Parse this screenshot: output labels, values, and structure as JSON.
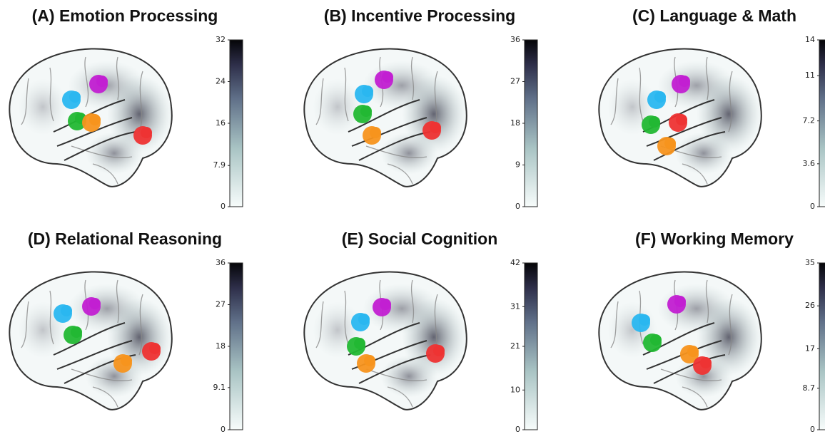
{
  "panels": [
    {
      "title": "(A) Emotion Processing",
      "colorbar": {
        "range": [
          0,
          32
        ],
        "ticks": [
          0,
          7.9,
          16,
          24,
          32
        ]
      }
    },
    {
      "title": "(B) Incentive Processing",
      "colorbar": {
        "range": [
          0,
          36
        ],
        "ticks": [
          0,
          9,
          18,
          27,
          36
        ]
      }
    },
    {
      "title": "(C) Language & Math",
      "colorbar": {
        "range": [
          0,
          14
        ],
        "ticks": [
          0,
          3.6,
          7.2,
          11,
          14
        ]
      }
    },
    {
      "title": "(D) Relational Reasoning",
      "colorbar": {
        "range": [
          0,
          36
        ],
        "ticks": [
          0,
          9.1,
          18,
          27,
          36
        ]
      }
    },
    {
      "title": "(E) Social Cognition",
      "colorbar": {
        "range": [
          0,
          42
        ],
        "ticks": [
          0,
          10,
          21,
          31,
          42
        ]
      }
    },
    {
      "title": "(F) Working Memory",
      "colorbar": {
        "range": [
          0,
          35
        ],
        "ticks": [
          0,
          8.7,
          17,
          26,
          35
        ]
      }
    }
  ]
}
